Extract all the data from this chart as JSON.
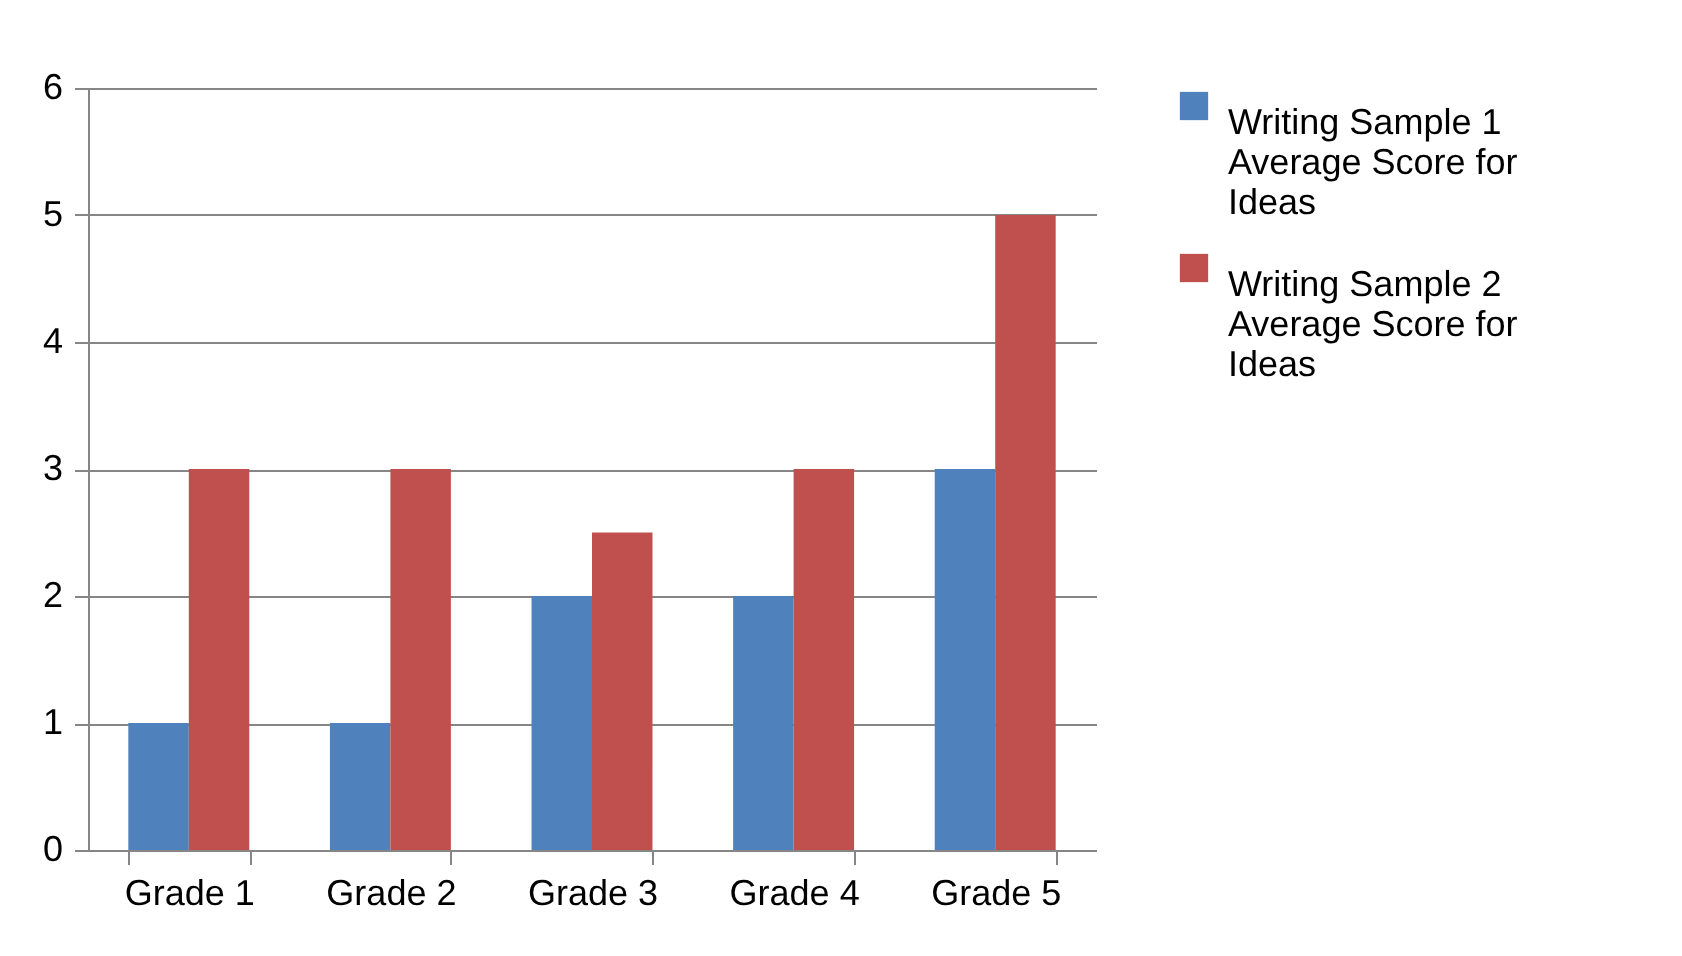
{
  "chart_data": {
    "type": "bar",
    "categories": [
      "Grade 1",
      "Grade 2",
      "Grade 3",
      "Grade 4",
      "Grade 5"
    ],
    "series": [
      {
        "name": "Writing Sample 1 Average Score for Ideas",
        "color": "#4f81bd",
        "values": [
          1,
          1,
          2,
          2,
          3
        ]
      },
      {
        "name": "Writing Sample 2 Average Score for Ideas",
        "color": "#c0504d",
        "values": [
          3,
          3,
          2.5,
          3,
          5
        ]
      }
    ],
    "ylim": [
      0,
      6
    ],
    "yticks": [
      0,
      1,
      2,
      3,
      4,
      5,
      6
    ],
    "grid": "y",
    "legend": "right"
  }
}
